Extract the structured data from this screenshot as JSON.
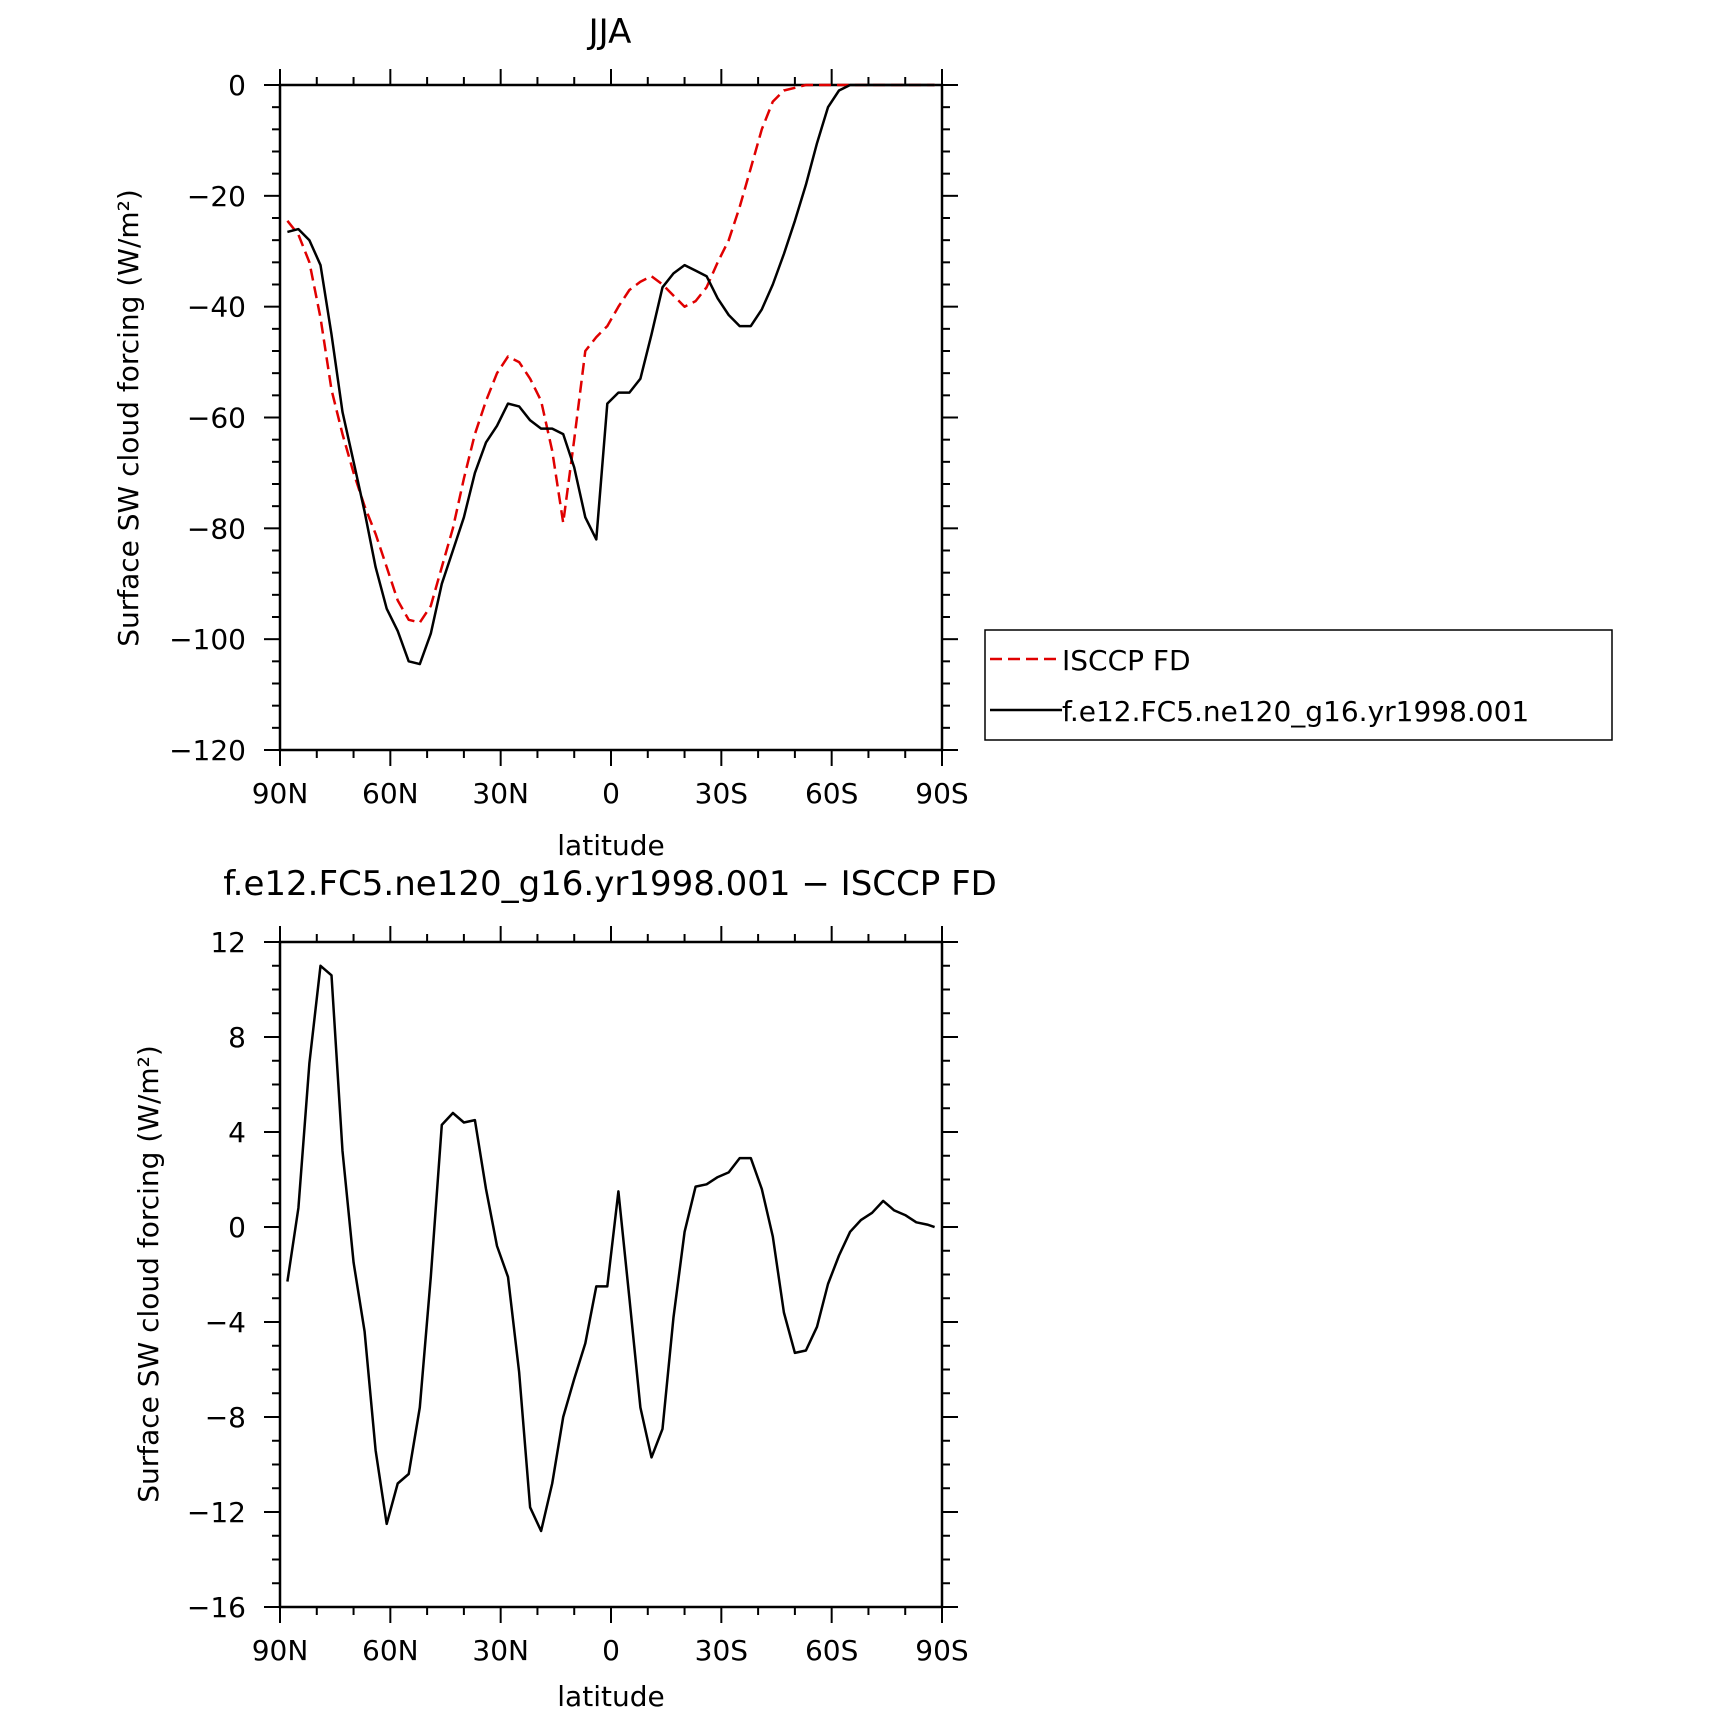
{
  "chart_data": [
    {
      "type": "line",
      "title": "JJA",
      "xlabel": "latitude",
      "ylabel": "Surface SW cloud forcing (W/m²)",
      "xlim": [
        90,
        -90
      ],
      "ylim": [
        -120,
        0
      ],
      "x_tick_values": [
        90,
        60,
        30,
        0,
        -30,
        -60,
        -90
      ],
      "x_tick_labels": [
        "90N",
        "60N",
        "30N",
        "0",
        "30S",
        "60S",
        "90S"
      ],
      "y_tick_values": [
        0,
        -20,
        -40,
        -60,
        -80,
        -100,
        -120
      ],
      "y_tick_labels": [
        "0",
        "−20",
        "−40",
        "−60",
        "−80",
        "−100",
        "−120"
      ],
      "grid": false,
      "legend_position": "right",
      "series": [
        {
          "name": "ISCCP FD",
          "color": "#e00000",
          "dash": "dashed",
          "x": [
            88,
            85,
            82,
            79,
            76,
            73,
            70,
            67,
            64,
            61,
            58,
            55,
            52,
            49,
            46,
            43,
            40,
            37,
            34,
            31,
            28,
            25,
            22,
            19,
            16,
            13,
            10,
            7,
            4,
            1,
            -2,
            -5,
            -8,
            -11,
            -14,
            -17,
            -20,
            -23,
            -26,
            -29,
            -32,
            -35,
            -38,
            -41,
            -44,
            -47,
            -50,
            -53,
            -56,
            -59,
            -62,
            -65,
            -68,
            -71,
            -74,
            -77,
            -80,
            -83,
            -86,
            -88
          ],
          "y": [
            -24.5,
            -27,
            -32,
            -42,
            -55,
            -63,
            -70,
            -76,
            -81,
            -87,
            -93,
            -96.5,
            -97,
            -94,
            -87,
            -80,
            -71,
            -63,
            -57,
            -52,
            -49,
            -50,
            -53,
            -57,
            -66,
            -79,
            -64,
            -48,
            -45.5,
            -43.5,
            -40,
            -37,
            -35.5,
            -34.5,
            -36,
            -38,
            -40,
            -39,
            -36.5,
            -32,
            -28,
            -22,
            -15,
            -8,
            -3,
            -1,
            -0.5,
            0,
            0,
            0,
            0,
            0,
            0,
            0,
            0,
            0,
            0,
            0,
            0,
            0
          ]
        },
        {
          "name": "f.e12.FC5.ne120_g16.yr1998.001",
          "color": "#000000",
          "dash": "solid",
          "x": [
            88,
            85,
            82,
            79,
            76,
            73,
            70,
            67,
            64,
            61,
            58,
            55,
            52,
            49,
            46,
            43,
            40,
            37,
            34,
            31,
            28,
            25,
            22,
            19,
            16,
            13,
            10,
            7,
            4,
            1,
            -2,
            -5,
            -8,
            -11,
            -14,
            -17,
            -20,
            -23,
            -26,
            -29,
            -32,
            -35,
            -38,
            -41,
            -44,
            -47,
            -50,
            -53,
            -56,
            -59,
            -62,
            -65,
            -68,
            -71,
            -74,
            -77,
            -80,
            -83,
            -86,
            -88
          ],
          "y": [
            -26.5,
            -26,
            -28,
            -32.5,
            -45,
            -59,
            -68,
            -77,
            -87,
            -94.5,
            -98.5,
            -104,
            -104.5,
            -99,
            -90,
            -84,
            -78,
            -70,
            -64.5,
            -61.5,
            -57.5,
            -58,
            -60.5,
            -62,
            -62,
            -63,
            -69,
            -78,
            -82,
            -57.5,
            -55.5,
            -55.5,
            -53,
            -45,
            -36.5,
            -34,
            -32.5,
            -33.5,
            -34.5,
            -38.5,
            -41.5,
            -43.5,
            -43.5,
            -40.5,
            -36,
            -30.5,
            -24.5,
            -18,
            -10.5,
            -4,
            -1,
            0,
            0,
            0,
            0,
            0,
            0,
            0,
            0,
            0
          ]
        }
      ]
    },
    {
      "type": "line",
      "title": "f.e12.FC5.ne120_g16.yr1998.001 − ISCCP FD",
      "xlabel": "latitude",
      "ylabel": "Surface SW cloud forcing (W/m²)",
      "xlim": [
        90,
        -90
      ],
      "ylim": [
        -16,
        12
      ],
      "x_tick_values": [
        90,
        60,
        30,
        0,
        -30,
        -60,
        -90
      ],
      "x_tick_labels": [
        "90N",
        "60N",
        "30N",
        "0",
        "30S",
        "60S",
        "90S"
      ],
      "y_tick_values": [
        12,
        8,
        4,
        0,
        -4,
        -8,
        -12,
        -16
      ],
      "y_tick_labels": [
        "12",
        "8",
        "4",
        "0",
        "−4",
        "−8",
        "−12",
        "−16"
      ],
      "grid": false,
      "series": [
        {
          "color": "#000000",
          "dash": "solid",
          "x": [
            88,
            85,
            82,
            79,
            76,
            73,
            70,
            67,
            64,
            61,
            58,
            55,
            52,
            49,
            46,
            43,
            40,
            37,
            34,
            31,
            28,
            25,
            22,
            19,
            16,
            13,
            10,
            7,
            4,
            1,
            -2,
            -5,
            -8,
            -11,
            -14,
            -17,
            -20,
            -23,
            -26,
            -29,
            -32,
            -35,
            -38,
            -41,
            -44,
            -47,
            -50,
            -53,
            -56,
            -59,
            -62,
            -65,
            -68,
            -71,
            -74,
            -77,
            -80,
            -83,
            -86,
            -88
          ],
          "y": [
            -2.3,
            0.8,
            6.9,
            11.0,
            10.6,
            3.2,
            -1.5,
            -4.4,
            -9.4,
            -12.5,
            -10.8,
            -10.4,
            -7.6,
            -2.1,
            4.3,
            4.8,
            4.4,
            4.5,
            1.6,
            -0.8,
            -2.1,
            -6.1,
            -11.8,
            -12.8,
            -10.8,
            -8.0,
            -6.4,
            -4.9,
            -2.5,
            -2.5,
            1.5,
            -3.0,
            -7.6,
            -9.7,
            -8.5,
            -3.8,
            -0.2,
            1.7,
            1.8,
            2.1,
            2.3,
            2.9,
            2.9,
            1.6,
            -0.4,
            -3.6,
            -5.3,
            -5.2,
            -4.2,
            -2.4,
            -1.2,
            -0.2,
            0.3,
            0.6,
            1.1,
            0.7,
            0.5,
            0.2,
            0.1,
            0.0
          ]
        }
      ]
    }
  ]
}
